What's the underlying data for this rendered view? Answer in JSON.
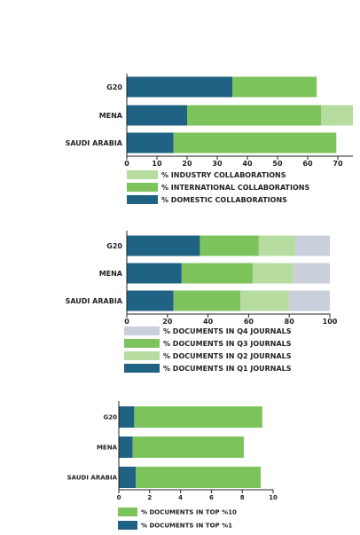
{
  "colors": {
    "dark_blue": "#1f6283",
    "green": "#7cc35c",
    "light_green": "#b6dca0",
    "grey": "#c9cfdb",
    "axis": "#222222"
  },
  "chart_data": [
    {
      "type": "bar",
      "orientation": "horizontal",
      "stacked": true,
      "categories": [
        "G20",
        "MENA",
        "SAUDI ARABIA"
      ],
      "xlim": [
        0,
        75
      ],
      "ticks": [
        0,
        10,
        20,
        30,
        40,
        50,
        60,
        70
      ],
      "series": [
        {
          "name": "% DOMESTIC COLLABORATIONS",
          "color": "#1f6283",
          "values": [
            35,
            20,
            15.5
          ]
        },
        {
          "name": "% INTERNATIONAL COLLABORATIONS",
          "color": "#7cc35c",
          "values": [
            28,
            44.5,
            54
          ]
        },
        {
          "name": "% INDUSTRY COLLABORATIONS",
          "color": "#b6dca0",
          "values": [
            0,
            10.5,
            0
          ]
        }
      ],
      "legend_order": [
        "% INDUSTRY COLLABORATIONS",
        "% INTERNATIONAL COLLABORATIONS",
        "% DOMESTIC COLLABORATIONS"
      ],
      "legend_position": "bottom-left"
    },
    {
      "type": "bar",
      "orientation": "horizontal",
      "stacked": true,
      "categories": [
        "G20",
        "MENA",
        "SAUDI ARABIA"
      ],
      "xlim": [
        0,
        100
      ],
      "ticks": [
        0,
        20,
        40,
        60,
        80,
        100
      ],
      "series": [
        {
          "name": "% DOCUMENTS IN Q1 JOURNALS",
          "color": "#1f6283",
          "values": [
            36,
            27,
            23
          ]
        },
        {
          "name": "% DOCUMENTS IN Q3 JOURNALS",
          "color": "#7cc35c",
          "values": [
            29,
            35,
            33
          ]
        },
        {
          "name": "% DOCUMENTS IN Q2 JOURNALS",
          "color": "#b6dca0",
          "values": [
            18,
            20,
            24
          ]
        },
        {
          "name": "% DOCUMENTS IN Q4 JOURNALS",
          "color": "#c9cfdb",
          "values": [
            17,
            18,
            20
          ]
        }
      ],
      "legend_order": [
        "% DOCUMENTS IN Q4 JOURNALS",
        "% DOCUMENTS IN Q3 JOURNALS",
        "% DOCUMENTS IN Q2 JOURNALS",
        "% DOCUMENTS IN Q1 JOURNALS"
      ],
      "legend_position": "bottom-left"
    },
    {
      "type": "bar",
      "orientation": "horizontal",
      "stacked": true,
      "categories": [
        "G20",
        "MENA",
        "SAUDI ARABIA"
      ],
      "xlim": [
        0,
        10
      ],
      "ticks": [
        0,
        2,
        4,
        6,
        8,
        10
      ],
      "series": [
        {
          "name": "% DOCUMENTS IN TOP %1",
          "color": "#1f6283",
          "values": [
            1.0,
            0.9,
            1.1
          ]
        },
        {
          "name": "% DOCUMENTS IN TOP %10",
          "color": "#7cc35c",
          "values": [
            8.3,
            7.2,
            8.1
          ]
        }
      ],
      "legend_order": [
        "% DOCUMENTS IN TOP %10",
        "% DOCUMENTS IN TOP %1"
      ],
      "legend_position": "bottom-left"
    }
  ]
}
